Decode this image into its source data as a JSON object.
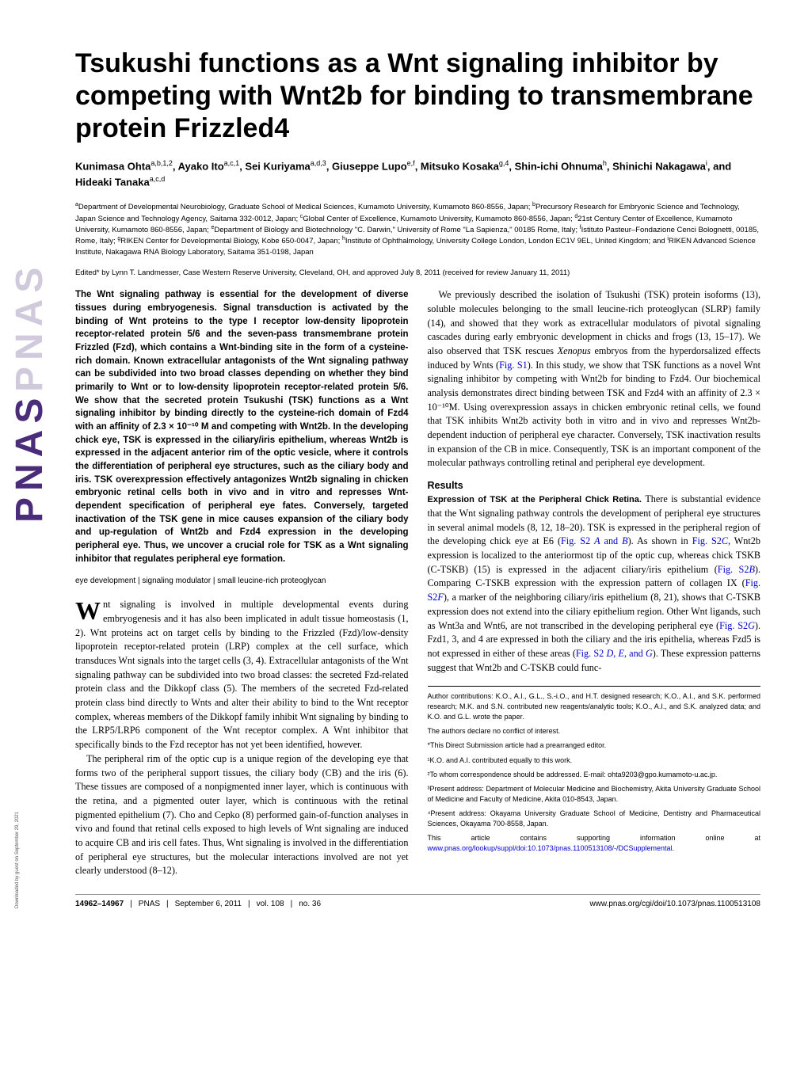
{
  "journal": {
    "logo": "PNAS",
    "download_note": "Downloaded by guest on September 29, 2021"
  },
  "title": "Tsukushi functions as a Wnt signaling inhibitor by competing with Wnt2b for binding to transmembrane protein Frizzled4",
  "authors_html": "Kunimasa Ohta<sup>a,b,1,2</sup>, Ayako Ito<sup>a,c,1</sup>, Sei Kuriyama<sup>a,d,3</sup>, Giuseppe Lupo<sup>e,f</sup>, Mitsuko Kosaka<sup>g,4</sup>, Shin-ichi Ohnuma<sup>h</sup>, Shinichi Nakagawa<sup>i</sup>, and Hideaki Tanaka<sup>a,c,d</sup>",
  "affiliations_html": "<sup>a</sup>Department of Developmental Neurobiology, Graduate School of Medical Sciences, Kumamoto University, Kumamoto 860-8556, Japan; <sup>b</sup>Precursory Research for Embryonic Science and Technology, Japan Science and Technology Agency, Saitama 332-0012, Japan; <sup>c</sup>Global Center of Excellence, Kumamoto University, Kumamoto 860-8556, Japan; <sup>d</sup>21st Century Center of Excellence, Kumamoto University, Kumamoto 860-8556, Japan; <sup>e</sup>Department of Biology and Biotechnology \"C. Darwin,\" University of Rome \"La Sapienza,\" 00185 Rome, Italy; <sup>f</sup>Istituto Pasteur–Fondazione Cenci Bolognetti, 00185, Rome, Italy; <sup>g</sup>RIKEN Center for Developmental Biology, Kobe 650-0047, Japan; <sup>h</sup>Institute of Ophthalmology, University College London, London EC1V 9EL, United Kingdom; and <sup>i</sup>RIKEN Advanced Science Institute, Nakagawa RNA Biology Laboratory, Saitama 351-0198, Japan",
  "edited": "Edited* by Lynn T. Landmesser, Case Western Reserve University, Cleveland, OH, and approved July 8, 2011 (received for review January 11, 2011)",
  "abstract": "The Wnt signaling pathway is essential for the development of diverse tissues during embryogenesis. Signal transduction is activated by the binding of Wnt proteins to the type I receptor low-density lipoprotein receptor-related protein 5/6 and the seven-pass transmembrane protein Frizzled (Fzd), which contains a Wnt-binding site in the form of a cysteine-rich domain. Known extracellular antagonists of the Wnt signaling pathway can be subdivided into two broad classes depending on whether they bind primarily to Wnt or to low-density lipoprotein receptor-related protein 5/6. We show that the secreted protein Tsukushi (TSK) functions as a Wnt signaling inhibitor by binding directly to the cysteine-rich domain of Fzd4 with an affinity of 2.3 × 10⁻¹⁰ M and competing with Wnt2b. In the developing chick eye, TSK is expressed in the ciliary/iris epithelium, whereas Wnt2b is expressed in the adjacent anterior rim of the optic vesicle, where it controls the differentiation of peripheral eye structures, such as the ciliary body and iris. TSK overexpression effectively antagonizes Wnt2b signaling in chicken embryonic retinal cells both in vivo and in vitro and represses Wnt-dependent specification of peripheral eye fates. Conversely, targeted inactivation of the TSK gene in mice causes expansion of the ciliary body and up-regulation of Wnt2b and Fzd4 expression in the developing peripheral eye. Thus, we uncover a crucial role for TSK as a Wnt signaling inhibitor that regulates peripheral eye formation.",
  "keywords": "eye development | signaling modulator | small leucine-rich proteoglycan",
  "intro_para1_html": "nt signaling is involved in multiple developmental events during embryogenesis and it has also been implicated in adult tissue homeostasis (1, 2). Wnt proteins act on target cells by binding to the Frizzled (Fzd)/low-density lipoprotein receptor-related protein (LRP) complex at the cell surface, which transduces Wnt signals into the target cells (3, 4). Extracellular antagonists of the Wnt signaling pathway can be subdivided into two broad classes: the secreted Fzd-related protein class and the Dikkopf class (5). The members of the secreted Fzd-related protein class bind directly to Wnts and alter their ability to bind to the Wnt receptor complex, whereas members of the Dikkopf family inhibit Wnt signaling by binding to the LRP5/LRP6 component of the Wnt receptor complex. A Wnt inhibitor that specifically binds to the Fzd receptor has not yet been identified, however.",
  "intro_para2": "The peripheral rim of the optic cup is a unique region of the developing eye that forms two of the peripheral support tissues, the ciliary body (CB) and the iris (6). These tissues are composed of a nonpigmented inner layer, which is continuous with the retina, and a pigmented outer layer, which is continuous with the retinal pigmented epithelium (7). Cho and Cepko (8) performed gain-of-function analyses in vivo and found that retinal cells exposed to high levels of Wnt signaling are induced to acquire CB and iris cell fates. Thus, Wnt signaling is involved in the differentiation of peripheral eye structures, but the molecular interactions involved are not yet clearly understood (8–12).",
  "right_col_para1_html": "We previously described the isolation of Tsukushi (TSK) protein isoforms (13), soluble molecules belonging to the small leucine-rich proteoglycan (SLRP) family (14), and showed that they work as extracellular modulators of pivotal signaling cascades during early embryonic development in chicks and frogs (13, 15–17). We also observed that TSK rescues <i>Xenopus</i> embryos from the hyperdorsalized effects induced by Wnts (<span class='link'>Fig. S1</span>). In this study, we show that TSK functions as a novel Wnt signaling inhibitor by competing with Wnt2b for binding to Fzd4. Our biochemical analysis demonstrates direct binding between TSK and Fzd4 with an affinity of 2.3 × 10⁻¹⁰M. Using overexpression assays in chicken embryonic retinal cells, we found that TSK inhibits Wnt2b activity both in vitro and in vivo and represses Wnt2b-dependent induction of peripheral eye character. Conversely, TSK inactivation results in expansion of the CB in mice. Consequently, TSK is an important component of the molecular pathways controlling retinal and peripheral eye development.",
  "results_heading": "Results",
  "results_sub1": "Expression of TSK at the Peripheral Chick Retina.",
  "results_para1_html": "There is substantial evidence that the Wnt signaling pathway controls the development of peripheral eye structures in several animal models (8, 12, 18–20). TSK is expressed in the peripheral region of the developing chick eye at E6 (<span class='link'>Fig. S2 <i>A</i> and <i>B</i></span>). As shown in <span class='link'>Fig. S2<i>C</i></span>, Wnt2b expression is localized to the anteriormost tip of the optic cup, whereas chick TSKB (C-TSKB) (15) is expressed in the adjacent ciliary/iris epithelium (<span class='link'>Fig. S2<i>B</i></span>). Comparing C-TSKB expression with the expression pattern of collagen IX (<span class='link'>Fig. S2<i>F</i></span>), a marker of the neighboring ciliary/iris epithelium (8, 21), shows that C-TSKB expression does not extend into the ciliary epithelium region. Other Wnt ligands, such as Wnt3a and Wnt6, are not transcribed in the developing peripheral eye (<span class='link'>Fig. S2<i>G</i></span>). Fzd1, 3, and 4 are expressed in both the ciliary and the iris epithelia, whereas Fzd5 is not expressed in either of these areas (<span class='link'>Fig. S2 <i>D</i>, <i>E</i>, and <i>G</i></span>). These expression patterns suggest that Wnt2b and C-TSKB could func-",
  "footnotes": {
    "contrib": "Author contributions: K.O., A.I., G.L., S.-i.O., and H.T. designed research; K.O., A.I., and S.K. performed research; M.K. and S.N. contributed new reagents/analytic tools; K.O., A.I., and S.K. analyzed data; and K.O. and G.L. wrote the paper.",
    "conflict": "The authors declare no conflict of interest.",
    "editor": "*This Direct Submission article had a prearranged editor.",
    "note1": "¹K.O. and A.I. contributed equally to this work.",
    "note2": "²To whom correspondence should be addressed. E-mail: ohta9203@gpo.kumamoto-u.ac.jp.",
    "note3": "³Present address: Department of Molecular Medicine and Biochemistry, Akita University Graduate School of Medicine and Faculty of Medicine, Akita 010-8543, Japan.",
    "note4": "⁴Present address: Okayama University Graduate School of Medicine, Dentistry and Pharmaceutical Sciences, Okayama 700-8558, Japan.",
    "suppl_html": "This article contains supporting information online at <span class='link'>www.pnas.org/lookup/suppl/doi:10.1073/pnas.1100513108/-/DCSupplemental</span>."
  },
  "footer": {
    "pages": "14962–14967",
    "journal": "PNAS",
    "date": "September 6, 2011",
    "vol": "vol. 108",
    "issue": "no. 36",
    "url": "www.pnas.org/cgi/doi/10.1073/pnas.1100513108"
  },
  "colors": {
    "text": "#000000",
    "link": "#0000cc",
    "logo": "#4a2c7a",
    "background": "#ffffff"
  },
  "typography": {
    "title_fontsize": 34,
    "title_weight": "bold",
    "body_fontsize": 12.2,
    "abstract_fontsize": 11.5,
    "footnote_fontsize": 9,
    "affiliations_fontsize": 9.5
  }
}
